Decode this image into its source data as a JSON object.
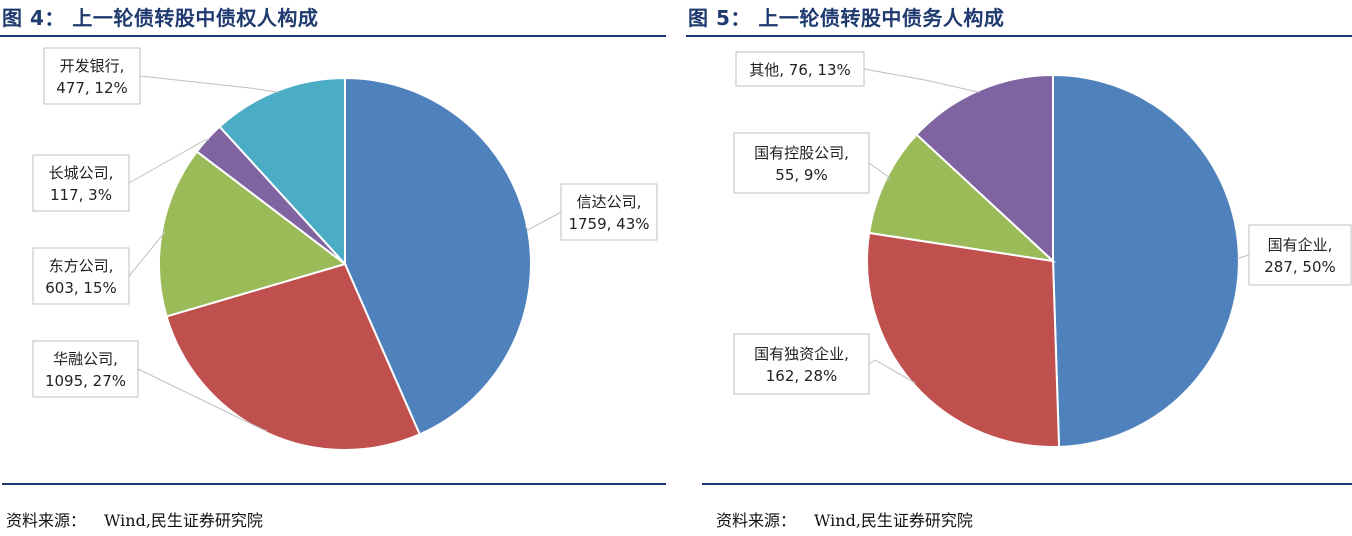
{
  "figures": [
    {
      "title": "图 4：  上一轮债转股中债权人构成",
      "source": {
        "prefix": "资料来源：",
        "text": "Wind,民生证券研究院"
      },
      "chart_data": {
        "type": "pie",
        "slices": [
          {
            "name": "信达公司",
            "value": 1759,
            "percent": "43%",
            "color": "#4f81bd"
          },
          {
            "name": "华融公司",
            "value": 1095,
            "percent": "27%",
            "color": "#c0504d"
          },
          {
            "name": "东方公司",
            "value": 603,
            "percent": "15%",
            "color": "#9bbb59"
          },
          {
            "name": "长城公司",
            "value": 117,
            "percent": "3%",
            "color": "#8064a2"
          },
          {
            "name": "开发银行",
            "value": 477,
            "percent": "12%",
            "color": "#4bacc6"
          }
        ],
        "labels": [
          {
            "line1": "信达公司,",
            "line2": "1759, 43%"
          },
          {
            "line1": "华融公司,",
            "line2": "1095, 27%"
          },
          {
            "line1": "东方公司,",
            "line2": "603, 15%"
          },
          {
            "line1": "长城公司,",
            "line2": "117, 3%"
          },
          {
            "line1": "开发银行,",
            "line2": "477, 12%"
          }
        ]
      }
    },
    {
      "title": "图 5：  上一轮债转股中债务人构成",
      "source": {
        "prefix": "资料来源：",
        "text": "Wind,民生证券研究院"
      },
      "chart_data": {
        "type": "pie",
        "slices": [
          {
            "name": "国有企业",
            "value": 287,
            "percent": "50%",
            "color": "#4f81bd"
          },
          {
            "name": "国有独资企业",
            "value": 162,
            "percent": "28%",
            "color": "#c0504d"
          },
          {
            "name": "国有控股公司",
            "value": 55,
            "percent": "9%",
            "color": "#9bbb59"
          },
          {
            "name": "其他",
            "value": 76,
            "percent": "13%",
            "color": "#8064a2"
          }
        ],
        "labels": [
          {
            "line1": "国有企业,",
            "line2": "287, 50%"
          },
          {
            "line1": "国有独资企业,",
            "line2": "162, 28%"
          },
          {
            "line1": "国有控股公司,",
            "line2": "55, 9%"
          },
          {
            "line1": "其他, 76, 13%",
            "line2": ""
          }
        ]
      }
    }
  ]
}
